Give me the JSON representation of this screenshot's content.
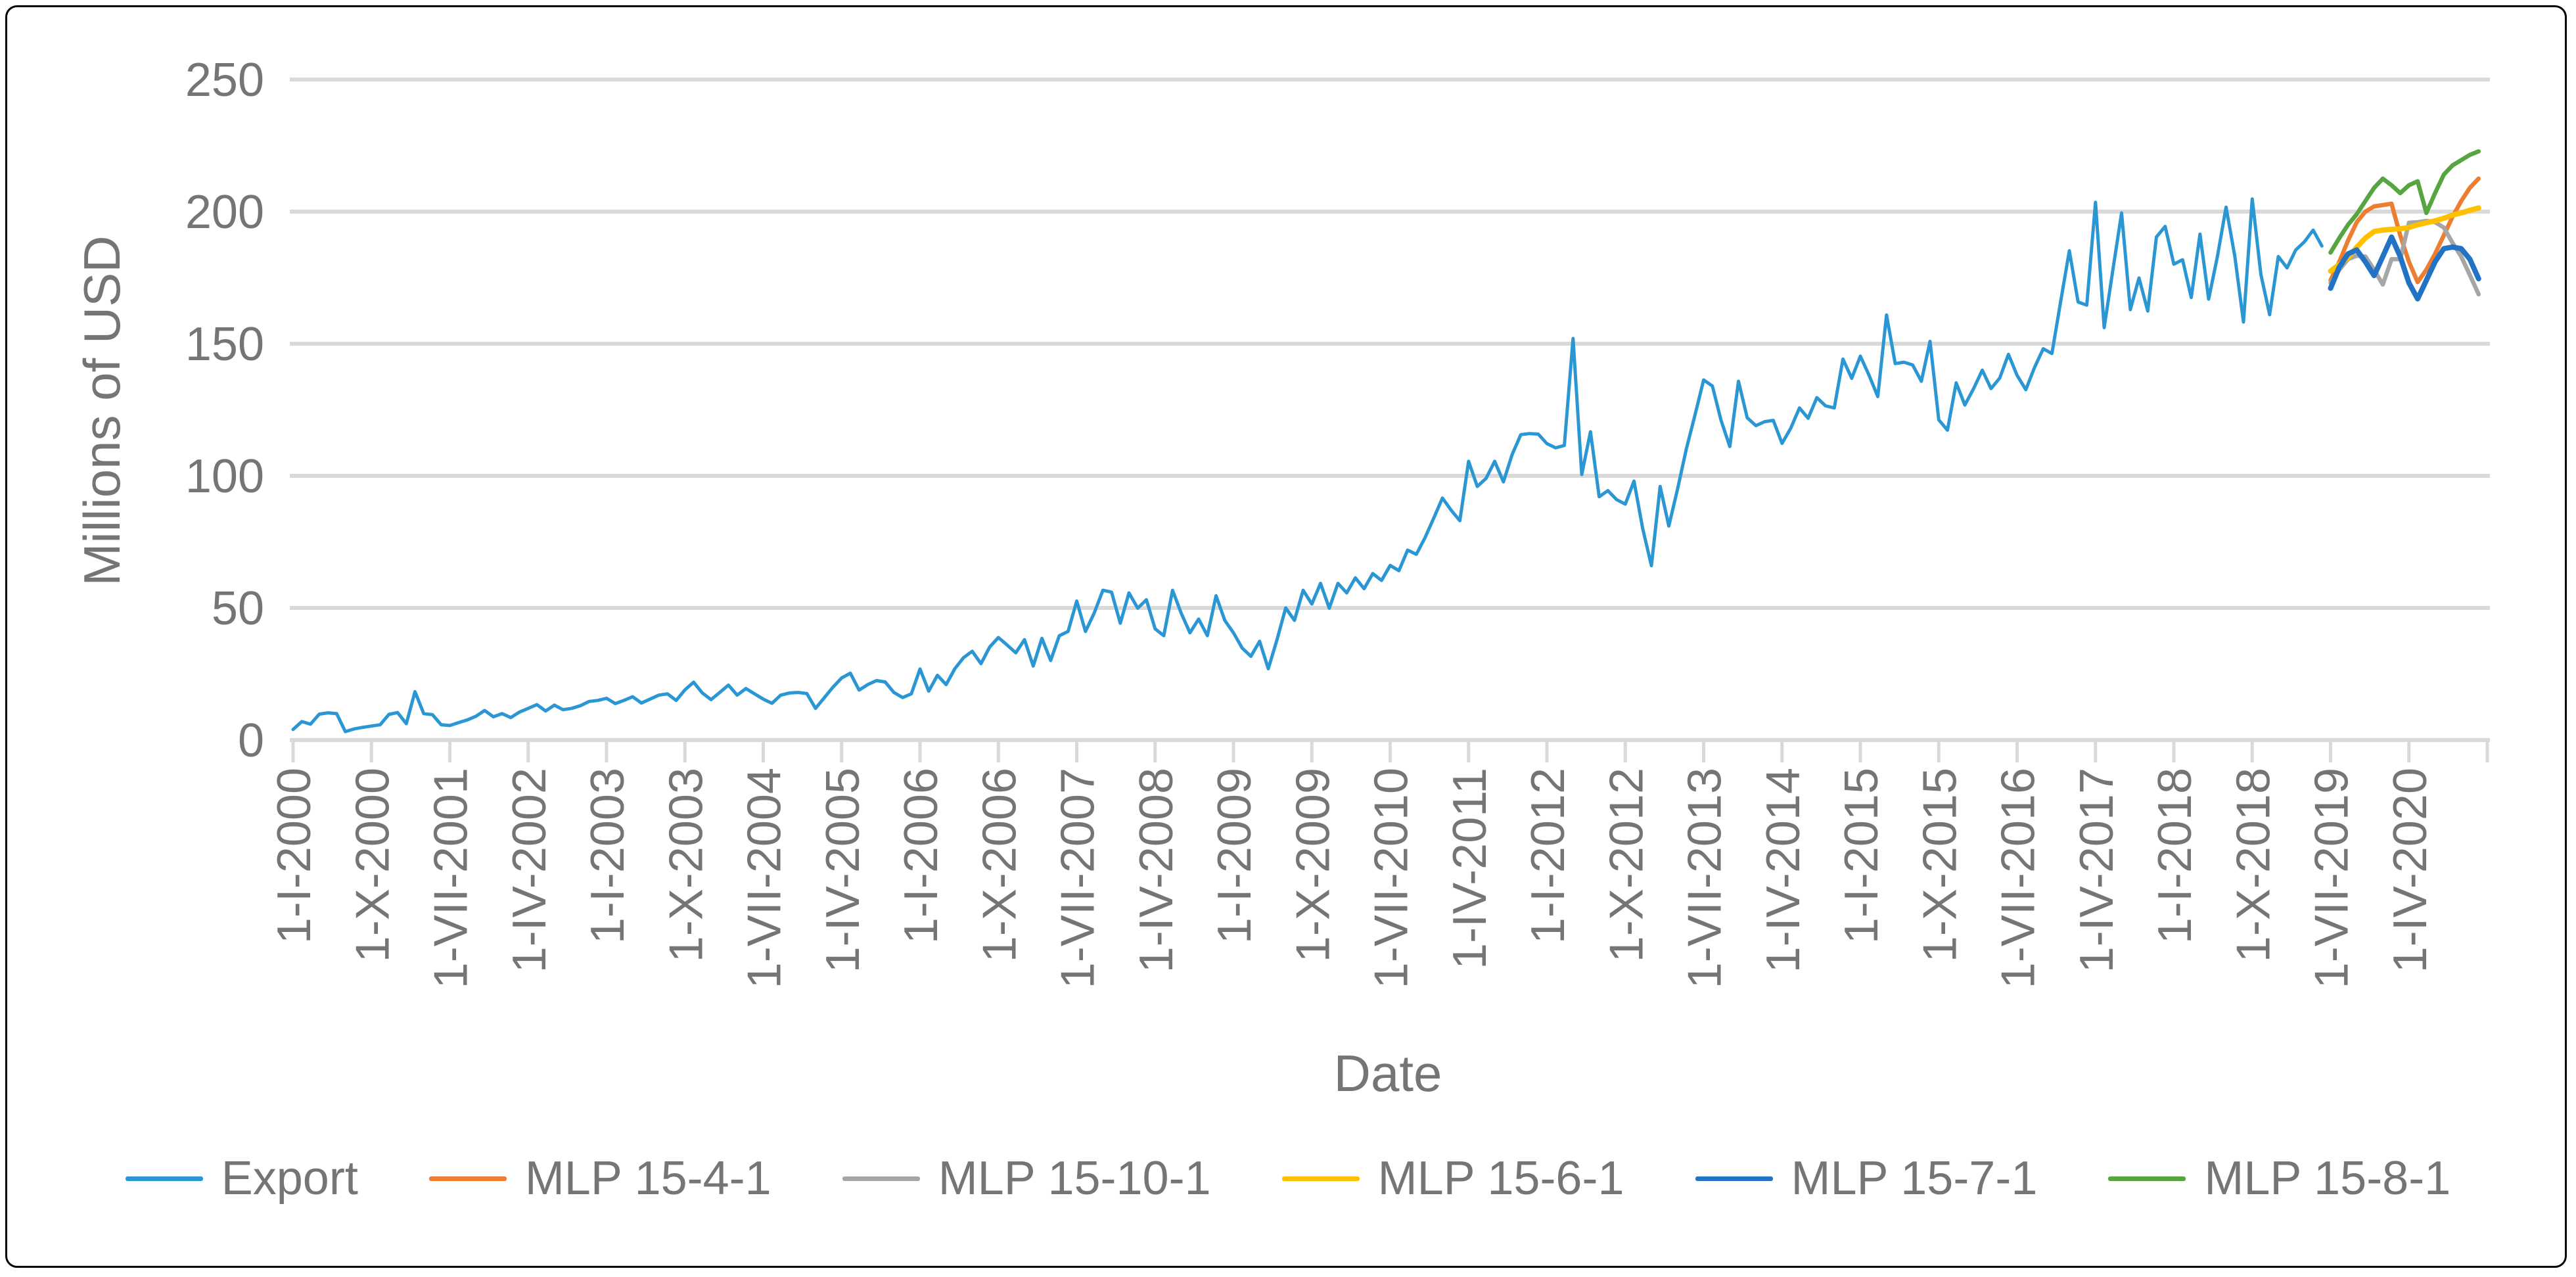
{
  "figure": {
    "background": "#ffffff",
    "border_color": "#000000"
  },
  "axis": {
    "text_color": "#757575",
    "grid_color": "#D9D9D9"
  },
  "chart_data": {
    "type": "line",
    "title": "",
    "xlabel": "Date",
    "ylabel": "Millions of USD",
    "ylim": [
      0,
      250
    ],
    "y_ticks": [
      0,
      50,
      100,
      150,
      200,
      250
    ],
    "x_unit": "month",
    "x_start": "2000-01",
    "x_end": "2020-12",
    "x_tick_interval_months": 9,
    "x_tick_labels": [
      "1-I-2000",
      "1-X-2000",
      "1-VII-2001",
      "1-IV-2002",
      "1-I-2003",
      "1-X-2003",
      "1-VII-2004",
      "1-IV-2005",
      "1-I-2006",
      "1-X-2006",
      "1-VII-2007",
      "1-IV-2008",
      "1-I-2009",
      "1-X-2009",
      "1-VII-2010",
      "1-IV-2011",
      "1-I-2012",
      "1-X-2012",
      "1-VII-2013",
      "1-IV-2014",
      "1-I-2015",
      "1-X-2015",
      "1-VII-2016",
      "1-IV-2017",
      "1-I-2018",
      "1-X-2018",
      "1-VII-2019",
      "1-IV-2020"
    ],
    "grid": "horizontal",
    "legend_position": "bottom",
    "series": [
      {
        "name": "Export",
        "color": "#2B96D4",
        "stroke_width": 5,
        "start_month_index": 0,
        "values": [
          4,
          7,
          6,
          9.8,
          10.3,
          10,
          3.2,
          4.2,
          4.8,
          5.3,
          5.8,
          9.7,
          10.4,
          6.2,
          18.3,
          10,
          9.6,
          5.8,
          5.5,
          6.6,
          7.6,
          9,
          11.2,
          8.8,
          10,
          8.5,
          10.6,
          12,
          13.4,
          11,
          13.2,
          11.5,
          12,
          13,
          14.6,
          15,
          15.8,
          13.8,
          15,
          16.4,
          14,
          15.5,
          17,
          17.5,
          15,
          19,
          21.9,
          17.8,
          15.3,
          18,
          20.8,
          17,
          19.5,
          17.5,
          15.5,
          13.9,
          17,
          17.8,
          18,
          17.6,
          12,
          16,
          20,
          23.5,
          25.3,
          18.9,
          21,
          22.5,
          22,
          18,
          16.1,
          17.5,
          26.9,
          18.5,
          24.5,
          21,
          27,
          31.2,
          33.6,
          28.9,
          35.2,
          38.8,
          36,
          33,
          38,
          28,
          38.5,
          30.1,
          39.5,
          41.1,
          52.6,
          41.1,
          48,
          56.7,
          56,
          44.2,
          55.7,
          49.9,
          53.1,
          42.1,
          39.5,
          56.7,
          48,
          40.6,
          45.8,
          39.5,
          54.6,
          45.3,
          40.6,
          34.8,
          31.7,
          37.4,
          27,
          38,
          50,
          45.3,
          56.7,
          51.5,
          59.3,
          49.9,
          59.3,
          55.7,
          61.4,
          57.3,
          63,
          60.4,
          66.1,
          64.1,
          71.9,
          70.3,
          76.6,
          84,
          91.6,
          87,
          83,
          105.5,
          96,
          99,
          105.5,
          97.7,
          108,
          115.6,
          116,
          115.8,
          112.2,
          110.6,
          111.5,
          152,
          100.5,
          116.7,
          92.1,
          94.4,
          91,
          89.3,
          98,
          80,
          66,
          96,
          81,
          95,
          110,
          123,
          136.3,
          134,
          121,
          111.1,
          135.8,
          122,
          119,
          120.5,
          121,
          112.3,
          118,
          125.7,
          121.8,
          129.6,
          126.5,
          125.7,
          144.2,
          136.9,
          145.3,
          138,
          130,
          160.9,
          142.5,
          143,
          142,
          135.8,
          150.9,
          121.2,
          117.3,
          135.2,
          126.8,
          133,
          140,
          133,
          137,
          146,
          138,
          132.6,
          141,
          148.1,
          146.3,
          166,
          185.2,
          165.8,
          164.6,
          203.5,
          156.1,
          178,
          199.5,
          162.9,
          174.9,
          162.4,
          190.4,
          194.4,
          180.1,
          181.8,
          167.5,
          191.5,
          166.9,
          183,
          201.7,
          183.1,
          158.2,
          204.8,
          176.2,
          161,
          183,
          178.7,
          185.5,
          188.6,
          193,
          187
        ]
      },
      {
        "name": "MLP 15-4-1",
        "color": "#ED7D31",
        "stroke_width": 6.5,
        "start_month_index": 234,
        "values": [
          174,
          181,
          189,
          196,
          200,
          202,
          202.5,
          203,
          191,
          181,
          173.3,
          178,
          184,
          191,
          198,
          204,
          209,
          212.5
        ]
      },
      {
        "name": "MLP 15-10-1",
        "color": "#A6A6A6",
        "stroke_width": 6.5,
        "start_month_index": 234,
        "values": [
          173,
          178,
          182,
          183.3,
          183,
          178,
          172.4,
          182,
          182,
          195.8,
          196,
          196.5,
          196,
          194,
          188.2,
          183,
          176,
          168.7
        ]
      },
      {
        "name": "MLP 15-6-1",
        "color": "#FFC000",
        "stroke_width": 8,
        "start_month_index": 234,
        "values": [
          177.5,
          180,
          182.5,
          186.5,
          190,
          192.5,
          193,
          193.3,
          193.5,
          194,
          195,
          195.8,
          196.5,
          197.5,
          198.7,
          199.5,
          200.5,
          201.4
        ]
      },
      {
        "name": "MLP 15-7-1",
        "color": "#2273C3",
        "stroke_width": 8,
        "start_month_index": 234,
        "values": [
          171,
          179,
          184,
          185.5,
          181,
          175.8,
          183,
          190.4,
          183,
          173,
          167,
          174,
          181,
          186,
          186.6,
          186,
          182,
          174.6
        ]
      },
      {
        "name": "MLP 15-8-1",
        "color": "#56A540",
        "stroke_width": 6.5,
        "start_month_index": 234,
        "values": [
          184.5,
          190,
          195,
          199,
          204,
          209,
          212.5,
          210,
          207,
          210,
          211.5,
          199.5,
          207,
          214,
          217.5,
          219.5,
          221.5,
          222.8
        ]
      }
    ]
  }
}
